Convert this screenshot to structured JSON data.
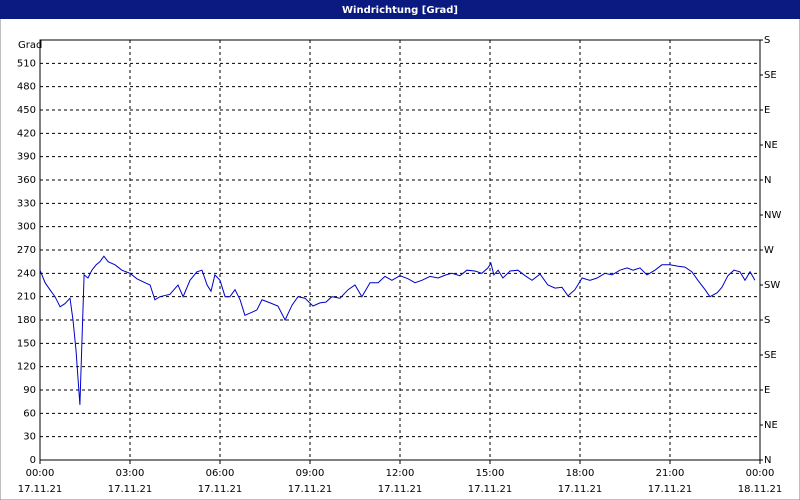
{
  "window_title": "Windrichtung [Grad]",
  "chart_data": {
    "type": "line",
    "ylabel": "Grad",
    "x": [
      0,
      0.17,
      0.33,
      0.5,
      0.67,
      0.83,
      1.0,
      1.1,
      1.2,
      1.33,
      1.47,
      1.6,
      1.73,
      1.87,
      2.0,
      2.13,
      2.27,
      2.5,
      2.73,
      3.0,
      3.23,
      3.5,
      3.67,
      3.83,
      4.0,
      4.33,
      4.6,
      4.77,
      5.0,
      5.23,
      5.4,
      5.57,
      5.7,
      5.83,
      6.0,
      6.17,
      6.33,
      6.5,
      6.67,
      6.83,
      7.07,
      7.23,
      7.4,
      7.67,
      7.93,
      8.17,
      8.4,
      8.6,
      8.83,
      9.1,
      9.33,
      9.53,
      9.73,
      10.0,
      10.27,
      10.5,
      10.73,
      11.0,
      11.27,
      11.5,
      11.73,
      12.0,
      12.27,
      12.5,
      12.73,
      13.0,
      13.27,
      13.53,
      13.73,
      14.0,
      14.23,
      14.5,
      14.73,
      14.93,
      15.03,
      15.13,
      15.27,
      15.43,
      15.67,
      15.93,
      16.17,
      16.4,
      16.67,
      16.93,
      17.17,
      17.4,
      17.6,
      17.83,
      18.07,
      18.33,
      18.57,
      18.83,
      19.07,
      19.33,
      19.57,
      19.77,
      20.0,
      20.23,
      20.5,
      20.73,
      21.0,
      21.27,
      21.5,
      21.73,
      21.93,
      22.17,
      22.33,
      22.57,
      22.73,
      22.93,
      23.13,
      23.33,
      23.5,
      23.67,
      23.83
    ],
    "series": [
      {
        "name": "Windrichtung",
        "color": "#0000c8",
        "values": [
          244,
          228,
          219,
          210,
          197,
          201,
          208,
          180,
          141,
          71,
          238,
          234,
          244,
          251,
          255,
          262,
          255,
          251,
          244,
          240,
          233,
          228,
          225,
          206,
          210,
          213,
          225,
          210,
          231,
          242,
          244,
          225,
          217,
          238,
          231,
          210,
          210,
          219,
          206,
          186,
          190,
          193,
          206,
          202,
          198,
          180,
          199,
          210,
          208,
          198,
          202,
          203,
          210,
          208,
          219,
          225,
          210,
          228,
          228,
          236,
          231,
          237,
          233,
          228,
          231,
          236,
          234,
          238,
          240,
          237,
          244,
          243,
          240,
          247,
          253,
          238,
          244,
          234,
          243,
          244,
          237,
          231,
          239,
          225,
          221,
          222,
          211,
          219,
          234,
          231,
          234,
          240,
          238,
          244,
          247,
          244,
          247,
          238,
          244,
          251,
          251,
          249,
          248,
          242,
          231,
          219,
          210,
          215,
          222,
          237,
          244,
          242,
          231,
          242,
          231
        ]
      }
    ],
    "xlim": [
      0,
      24
    ],
    "xticks": [
      {
        "value": 0,
        "label": "00:00"
      },
      {
        "value": 3,
        "label": "03:00"
      },
      {
        "value": 6,
        "label": "06:00"
      },
      {
        "value": 9,
        "label": "09:00"
      },
      {
        "value": 12,
        "label": "12:00"
      },
      {
        "value": 15,
        "label": "15:00"
      },
      {
        "value": 18,
        "label": "18:00"
      },
      {
        "value": 21,
        "label": "21:00"
      },
      {
        "value": 24,
        "label": "00:00"
      }
    ],
    "xtick_dates": [
      "17.11.21",
      "17.11.21",
      "17.11.21",
      "17.11.21",
      "17.11.21",
      "17.11.21",
      "17.11.21",
      "17.11.21",
      "18.11.21"
    ],
    "ylim": [
      0,
      540
    ],
    "yticks": [
      0,
      30,
      60,
      90,
      120,
      150,
      180,
      210,
      240,
      270,
      300,
      330,
      360,
      390,
      420,
      450,
      480,
      510
    ],
    "y2lim": [
      0,
      540
    ],
    "y2ticks": [
      {
        "value": 0,
        "label": "N"
      },
      {
        "value": 45,
        "label": "NE"
      },
      {
        "value": 90,
        "label": "E"
      },
      {
        "value": 135,
        "label": "SE"
      },
      {
        "value": 180,
        "label": "S"
      },
      {
        "value": 225,
        "label": "SW"
      },
      {
        "value": 270,
        "label": "W"
      },
      {
        "value": 315,
        "label": "NW"
      },
      {
        "value": 360,
        "label": "N"
      },
      {
        "value": 405,
        "label": "NE"
      },
      {
        "value": 450,
        "label": "E"
      },
      {
        "value": 495,
        "label": "SE"
      },
      {
        "value": 540,
        "label": "S"
      }
    ],
    "grid": true
  }
}
